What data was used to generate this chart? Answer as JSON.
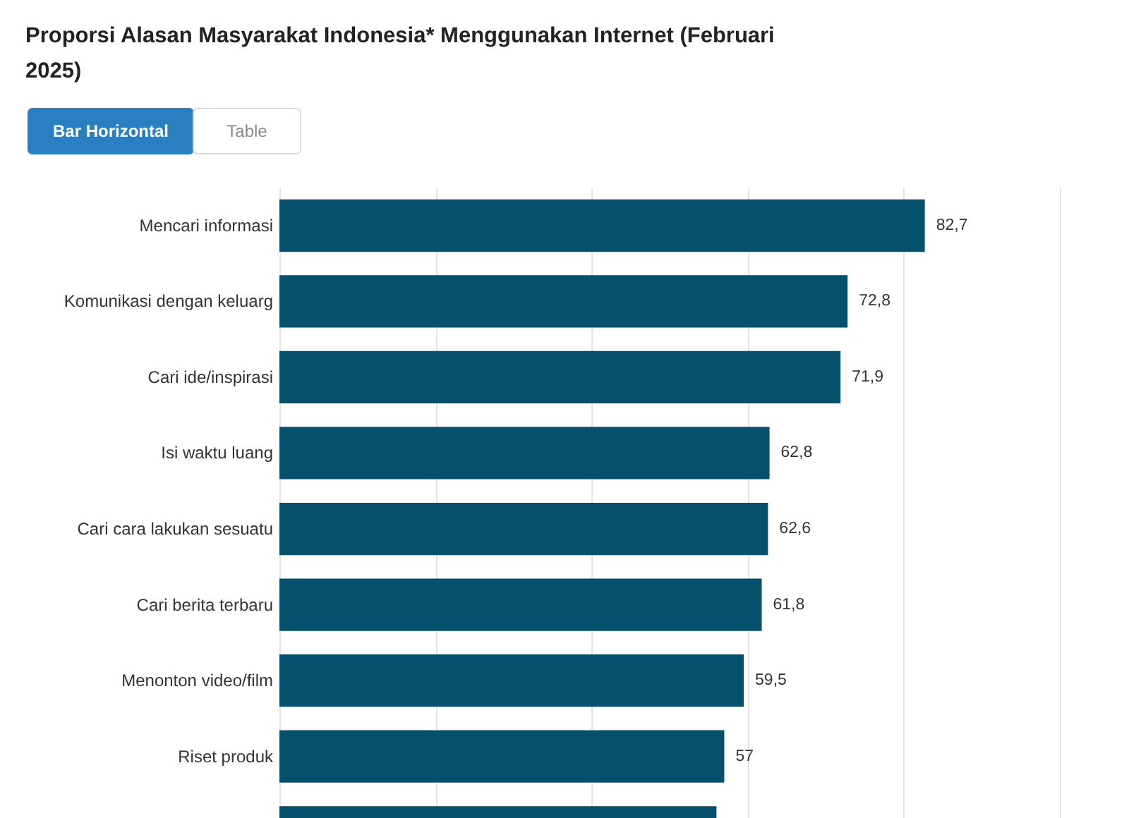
{
  "chart_data": {
    "type": "bar",
    "orientation": "horizontal",
    "title": "Proporsi Alasan Masyarakat Indonesia* Menggunakan Internet (Februari 2025)",
    "annotations": [
      "Bar Horizontal",
      "Table"
    ],
    "categories": [
      "Mencari informasi",
      "Komunikasi dengan keluarg",
      "Cari ide/inspirasi",
      "Isi waktu luang",
      "Cari cara lakukan sesuatu",
      "Cari berita terbaru",
      "Menonton video/film",
      "Riset produk",
      null
    ],
    "values": [
      82.7,
      72.8,
      71.9,
      62.8,
      62.6,
      61.8,
      59.5,
      57,
      56
    ],
    "value_labels": [
      "82,7",
      "72,8",
      "71,9",
      "62,8",
      "62,6",
      "61,8",
      "59,5",
      "57",
      null
    ],
    "color": "#05506c",
    "xlim": [
      0,
      100
    ],
    "xticks": [
      {
        "value": 0,
        "label": null
      },
      {
        "value": 20,
        "label": null
      },
      {
        "value": 40,
        "label": null
      },
      {
        "value": 60,
        "label": null
      },
      {
        "value": 80,
        "label": null
      },
      {
        "value": 100,
        "label": null
      }
    ],
    "grid": "x",
    "tick_labels": "y"
  }
}
